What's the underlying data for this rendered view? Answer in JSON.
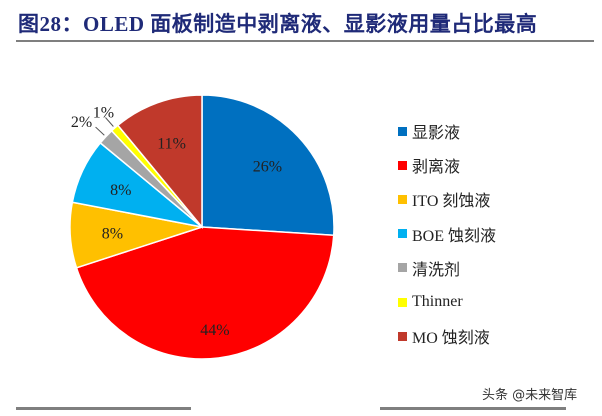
{
  "title": "图28：OLED 面板制造中剥离液、显影液用量占比最高",
  "watermark": "头条 @未来智库",
  "chart_data": {
    "type": "pie",
    "start": "12 o'clock, clockwise",
    "legend_position": "right",
    "categories": [
      "显影液",
      "剥离液",
      "ITO 刻蚀液",
      "BOE 蚀刻液",
      "清洗剂",
      "Thinner",
      "MO 蚀刻液"
    ],
    "values": [
      26,
      44,
      8,
      8,
      2,
      1,
      11
    ],
    "labels": [
      "26%",
      "44%",
      "8%",
      "8%",
      "2%",
      "1%",
      "11%"
    ],
    "colors": [
      "#0070c0",
      "#ff0000",
      "#ffc000",
      "#00b0f0",
      "#a5a5a5",
      "#ffff00",
      "#c0392b"
    ]
  }
}
